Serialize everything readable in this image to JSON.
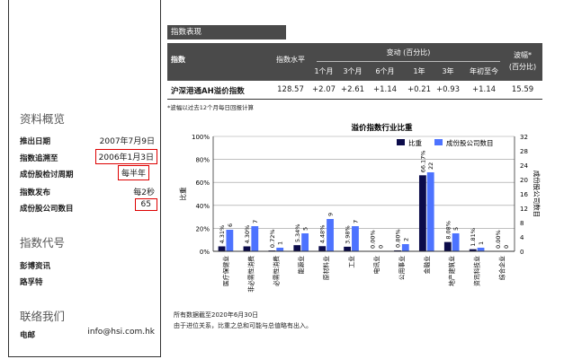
{
  "left": {
    "overview_title": "资料概览",
    "rows": [
      {
        "label": "推出日期",
        "value": "2007年7月9日"
      },
      {
        "label": "指数追溯至",
        "value": "2006年1月3日"
      },
      {
        "label": "成份股检讨周期",
        "value": "每半年"
      },
      {
        "label": "指数发布",
        "value": "每2秒"
      },
      {
        "label": "成份股公司数目",
        "value": "65"
      }
    ],
    "code_title": "指数代号",
    "codes": [
      "彭博资讯",
      "路孚特"
    ],
    "contact_title": "联络我们",
    "contact_label": "电邮",
    "contact_email": "info@hsi.com.hk",
    "highlight_color": "#dd0000"
  },
  "table": {
    "tab_title": "指数表现",
    "col_index": "指数",
    "col_level": "指数水平",
    "change_group": "变动 (百分比)",
    "change_cols": [
      "1个月",
      "3个月",
      "6个月",
      "1年",
      "3年",
      "年初至今"
    ],
    "vol_title": "波幅*",
    "vol_sub": "(百分比)",
    "row": {
      "name": "沪深港通AH溢价指数",
      "level": "128.57",
      "changes": [
        "+2.07",
        "+2.61",
        "+1.14",
        "+0.21",
        "+0.93",
        "+1.14"
      ],
      "vol": "15.59"
    },
    "note": "*波幅以过去12个月每日回报计算"
  },
  "chart_data": {
    "type": "bar",
    "title": "溢价指数行业比重",
    "ylabel": "比重",
    "y2label": "成份股公司数目",
    "ylim": [
      0,
      100
    ],
    "y2lim": [
      0,
      32
    ],
    "yticks": [
      "0%",
      "20%",
      "40%",
      "60%",
      "80%",
      "100%"
    ],
    "y2ticks": [
      "0",
      "4",
      "8",
      "12",
      "16",
      "20",
      "24",
      "28",
      "32"
    ],
    "legend_position": "top-right",
    "categories": [
      "医疗保健业",
      "非必需性消费",
      "必需性消费",
      "能源业",
      "原材料业",
      "工业",
      "电讯业",
      "公用事业",
      "金融业",
      "地产建筑业",
      "资讯科技业",
      "综合企业"
    ],
    "series": [
      {
        "name": "比重",
        "axis": "left",
        "color": "#0b0b4a",
        "values": [
          4.31,
          4.3,
          0.72,
          5.34,
          4.48,
          3.98,
          0.0,
          0.8,
          66.17,
          8.08,
          1.81,
          0.0
        ],
        "labels": [
          "4.31%",
          "4.30%",
          "0.72%",
          "5.34%",
          "4.48%",
          "3.98%",
          "0.00%",
          "0.80%",
          "66.17%",
          "8.08%",
          "1.81%",
          "0.00%"
        ]
      },
      {
        "name": "成份股公司数目",
        "axis": "right",
        "color": "#4d73ff",
        "values": [
          6,
          7,
          1,
          5,
          9,
          7,
          0,
          2,
          22,
          5,
          1,
          0
        ],
        "labels": [
          "6",
          "7",
          "1",
          "5",
          "9",
          "7",
          "0",
          "2",
          "22",
          "5",
          "1",
          "0"
        ]
      }
    ]
  },
  "footer": {
    "line1": "所有数据截至2020年6月30日",
    "line2": "由于进位关系，比重之总和可能与总值略有出入。"
  }
}
